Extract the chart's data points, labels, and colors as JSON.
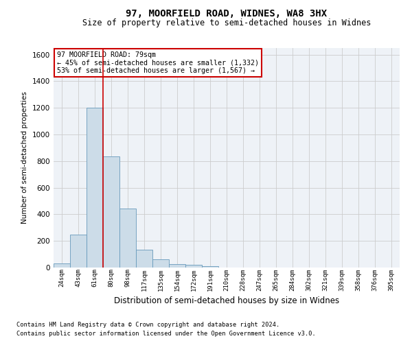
{
  "title_line1": "97, MOORFIELD ROAD, WIDNES, WA8 3HX",
  "title_line2": "Size of property relative to semi-detached houses in Widnes",
  "xlabel": "Distribution of semi-detached houses by size in Widnes",
  "ylabel": "Number of semi-detached properties",
  "footnote1": "Contains HM Land Registry data © Crown copyright and database right 2024.",
  "footnote2": "Contains public sector information licensed under the Open Government Licence v3.0.",
  "annotation_title": "97 MOORFIELD ROAD: 79sqm",
  "annotation_line2": "← 45% of semi-detached houses are smaller (1,332)",
  "annotation_line3": "53% of semi-detached houses are larger (1,567) →",
  "bar_categories": [
    "24sqm",
    "43sqm",
    "61sqm",
    "80sqm",
    "98sqm",
    "117sqm",
    "135sqm",
    "154sqm",
    "172sqm",
    "191sqm",
    "210sqm",
    "228sqm",
    "247sqm",
    "265sqm",
    "284sqm",
    "302sqm",
    "321sqm",
    "339sqm",
    "358sqm",
    "376sqm",
    "395sqm"
  ],
  "bar_values": [
    30,
    245,
    1200,
    835,
    445,
    135,
    60,
    25,
    20,
    10,
    0,
    0,
    0,
    0,
    0,
    0,
    0,
    0,
    0,
    0,
    0
  ],
  "bar_color": "#ccdce8",
  "bar_edgecolor": "#6699bb",
  "vline_color": "#cc0000",
  "annotation_box_edgecolor": "#cc0000",
  "ylim": [
    0,
    1650
  ],
  "yticks": [
    0,
    200,
    400,
    600,
    800,
    1000,
    1200,
    1400,
    1600
  ],
  "grid_color": "#cccccc",
  "bg_color": "#eef2f7"
}
